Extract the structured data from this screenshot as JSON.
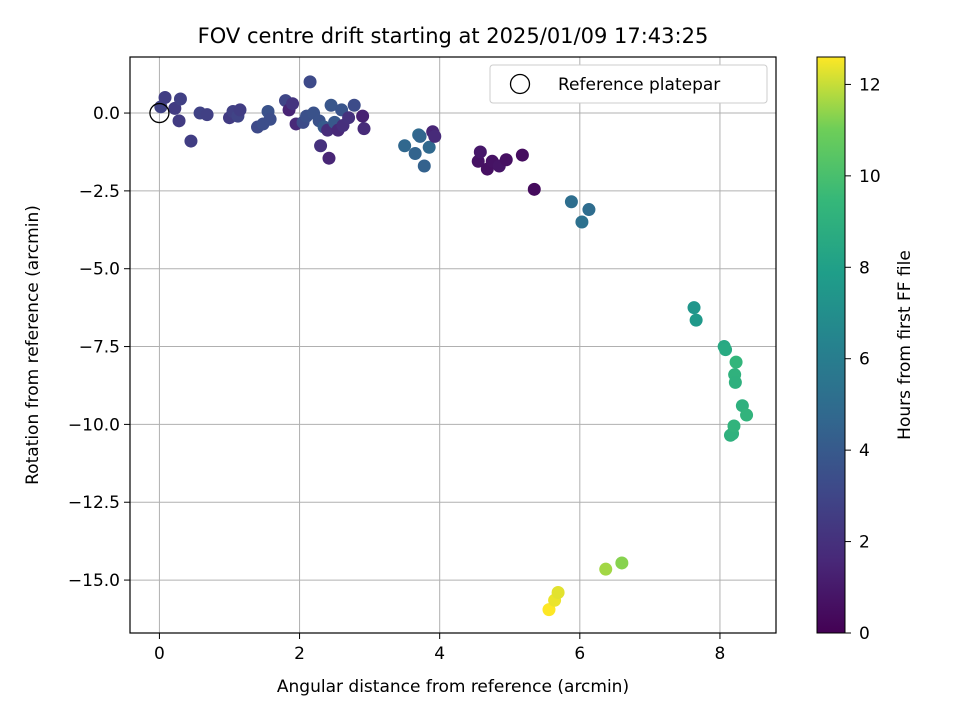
{
  "chart_data": {
    "type": "scatter",
    "title": "FOV centre drift starting at 2025/01/09 17:43:25",
    "xlabel": "Angular distance from reference (arcmin)",
    "ylabel": "Rotation from reference (arcmin)",
    "xlim": [
      -0.42,
      8.8
    ],
    "ylim": [
      -16.7,
      1.8
    ],
    "xticks": [
      0,
      2,
      4,
      6,
      8
    ],
    "xtick_labels": [
      "0",
      "2",
      "4",
      "6",
      "8"
    ],
    "yticks": [
      0,
      -2.5,
      -5,
      -7.5,
      -10,
      -12.5,
      -15
    ],
    "ytick_labels": [
      "0.0",
      "−2.5",
      "−5.0",
      "−7.5",
      "−10.0",
      "−12.5",
      "−15.0"
    ],
    "grid": true,
    "legend": {
      "position": "top-right",
      "entries": [
        {
          "label": "Reference platepar",
          "marker": "open-circle"
        }
      ]
    },
    "reference_point": {
      "x": 0,
      "y": 0
    },
    "colorbar": {
      "label": "Hours from first FF file",
      "range": [
        0,
        12.6
      ],
      "ticks": [
        0,
        2,
        4,
        6,
        8,
        10,
        12
      ],
      "tick_labels": [
        "0",
        "2",
        "4",
        "6",
        "8",
        "10",
        "12"
      ],
      "colormap": "viridis"
    },
    "points": [
      {
        "x": 0.02,
        "y": 0.2,
        "h": 2.8
      },
      {
        "x": 0.08,
        "y": 0.5,
        "h": 2.6
      },
      {
        "x": 0.22,
        "y": 0.15,
        "h": 2.5
      },
      {
        "x": 0.28,
        "y": -0.25,
        "h": 2.5
      },
      {
        "x": 0.3,
        "y": 0.45,
        "h": 2.7
      },
      {
        "x": 0.45,
        "y": -0.9,
        "h": 2.6
      },
      {
        "x": 0.58,
        "y": 0.0,
        "h": 2.8
      },
      {
        "x": 0.68,
        "y": -0.05,
        "h": 2.7
      },
      {
        "x": 1.0,
        "y": -0.15,
        "h": 2.5
      },
      {
        "x": 1.05,
        "y": 0.05,
        "h": 2.7
      },
      {
        "x": 1.12,
        "y": -0.1,
        "h": 2.9
      },
      {
        "x": 1.15,
        "y": 0.1,
        "h": 2.6
      },
      {
        "x": 1.4,
        "y": -0.45,
        "h": 3.2
      },
      {
        "x": 1.48,
        "y": -0.35,
        "h": 3.4
      },
      {
        "x": 1.55,
        "y": 0.05,
        "h": 3.6
      },
      {
        "x": 1.58,
        "y": -0.2,
        "h": 3.4
      },
      {
        "x": 1.8,
        "y": 0.4,
        "h": 3.0
      },
      {
        "x": 1.85,
        "y": 0.1,
        "h": 1.4
      },
      {
        "x": 1.9,
        "y": 0.3,
        "h": 2.2
      },
      {
        "x": 1.95,
        "y": -0.35,
        "h": 1.6
      },
      {
        "x": 2.05,
        "y": -0.3,
        "h": 3.3
      },
      {
        "x": 2.1,
        "y": -0.1,
        "h": 3.5
      },
      {
        "x": 2.15,
        "y": 1.0,
        "h": 3.2
      },
      {
        "x": 2.2,
        "y": 0.0,
        "h": 3.6
      },
      {
        "x": 2.28,
        "y": -0.25,
        "h": 3.6
      },
      {
        "x": 2.3,
        "y": -1.05,
        "h": 2.0
      },
      {
        "x": 2.35,
        "y": -0.45,
        "h": 4.0
      },
      {
        "x": 2.4,
        "y": -0.55,
        "h": 1.8
      },
      {
        "x": 2.42,
        "y": -1.45,
        "h": 1.5
      },
      {
        "x": 2.45,
        "y": 0.25,
        "h": 3.8
      },
      {
        "x": 2.5,
        "y": -0.3,
        "h": 3.9
      },
      {
        "x": 2.55,
        "y": -0.55,
        "h": 1.6
      },
      {
        "x": 2.6,
        "y": 0.1,
        "h": 3.7
      },
      {
        "x": 2.62,
        "y": -0.4,
        "h": 1.9
      },
      {
        "x": 2.7,
        "y": -0.15,
        "h": 2.0
      },
      {
        "x": 2.78,
        "y": 0.25,
        "h": 3.3
      },
      {
        "x": 2.9,
        "y": -0.1,
        "h": 1.3
      },
      {
        "x": 2.92,
        "y": -0.5,
        "h": 1.7
      },
      {
        "x": 3.5,
        "y": -1.05,
        "h": 4.7
      },
      {
        "x": 3.65,
        "y": -1.3,
        "h": 4.5
      },
      {
        "x": 3.7,
        "y": -0.7,
        "h": 4.9
      },
      {
        "x": 3.72,
        "y": -0.75,
        "h": 4.6
      },
      {
        "x": 3.78,
        "y": -1.7,
        "h": 4.4
      },
      {
        "x": 3.85,
        "y": -1.1,
        "h": 4.8
      },
      {
        "x": 3.9,
        "y": -0.6,
        "h": 1.5
      },
      {
        "x": 3.93,
        "y": -0.75,
        "h": 1.7
      },
      {
        "x": 4.55,
        "y": -1.55,
        "h": 0.7
      },
      {
        "x": 4.58,
        "y": -1.25,
        "h": 0.9
      },
      {
        "x": 4.68,
        "y": -1.8,
        "h": 0.6
      },
      {
        "x": 4.75,
        "y": -1.55,
        "h": 0.7
      },
      {
        "x": 4.85,
        "y": -1.7,
        "h": 0.8
      },
      {
        "x": 4.95,
        "y": -1.5,
        "h": 0.6
      },
      {
        "x": 5.18,
        "y": -1.35,
        "h": 0.5
      },
      {
        "x": 5.35,
        "y": -2.45,
        "h": 0.4
      },
      {
        "x": 5.88,
        "y": -2.85,
        "h": 5.1
      },
      {
        "x": 6.03,
        "y": -3.5,
        "h": 5.3
      },
      {
        "x": 6.13,
        "y": -3.1,
        "h": 5.0
      },
      {
        "x": 7.63,
        "y": -6.25,
        "h": 7.4
      },
      {
        "x": 7.66,
        "y": -6.65,
        "h": 7.6
      },
      {
        "x": 8.06,
        "y": -7.5,
        "h": 8.5
      },
      {
        "x": 8.08,
        "y": -7.6,
        "h": 8.6
      },
      {
        "x": 8.15,
        "y": -10.35,
        "h": 9.0
      },
      {
        "x": 8.18,
        "y": -10.3,
        "h": 9.1
      },
      {
        "x": 8.2,
        "y": -10.05,
        "h": 9.2
      },
      {
        "x": 8.21,
        "y": -8.4,
        "h": 9.1
      },
      {
        "x": 8.22,
        "y": -8.65,
        "h": 9.0
      },
      {
        "x": 8.23,
        "y": -8.0,
        "h": 9.3
      },
      {
        "x": 8.32,
        "y": -9.4,
        "h": 9.0
      },
      {
        "x": 8.38,
        "y": -9.7,
        "h": 9.2
      },
      {
        "x": 5.56,
        "y": -15.95,
        "h": 12.6
      },
      {
        "x": 5.64,
        "y": -15.65,
        "h": 12.4
      },
      {
        "x": 5.69,
        "y": -15.4,
        "h": 12.3
      },
      {
        "x": 6.37,
        "y": -14.65,
        "h": 11.6
      },
      {
        "x": 6.6,
        "y": -14.45,
        "h": 11.3
      }
    ]
  }
}
